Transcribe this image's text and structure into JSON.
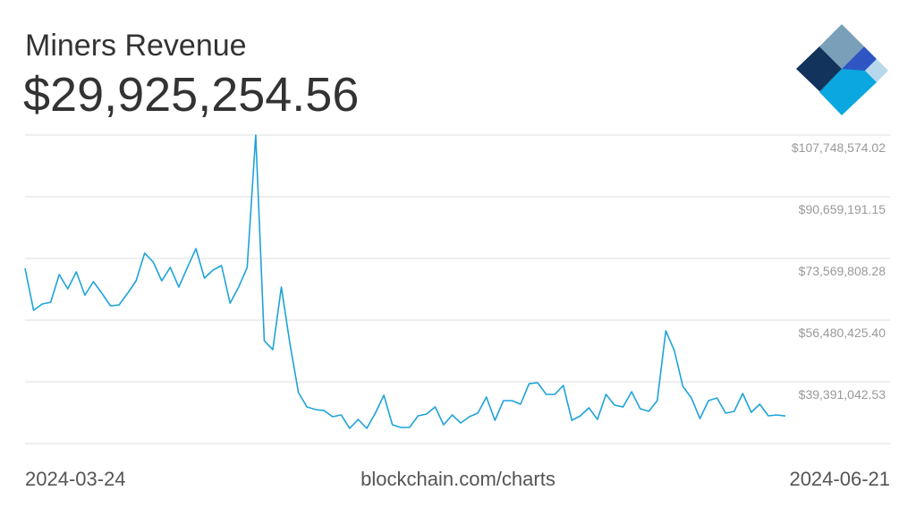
{
  "header": {
    "title": "Miners Revenue",
    "value": "$29,925,254.56"
  },
  "footer": {
    "source": "blockchain.com/charts"
  },
  "chart_data": {
    "type": "line",
    "color": "#1fa3d9",
    "grid": true,
    "categories": [
      "2024-03-24",
      null,
      null,
      null,
      null,
      null,
      null,
      null,
      null,
      null,
      null,
      null,
      null,
      null,
      null,
      null,
      null,
      null,
      null,
      null,
      null,
      null,
      null,
      null,
      null,
      null,
      null,
      null,
      null,
      null,
      null,
      null,
      null,
      null,
      null,
      null,
      null,
      null,
      null,
      null,
      null,
      null,
      null,
      null,
      null,
      null,
      null,
      null,
      null,
      null,
      null,
      null,
      null,
      null,
      null,
      null,
      null,
      null,
      null,
      null,
      null,
      null,
      null,
      null,
      null,
      null,
      null,
      null,
      null,
      null,
      null,
      null,
      null,
      null,
      null,
      null,
      null,
      null,
      null,
      null,
      null,
      null,
      null,
      null,
      null,
      null,
      null,
      null,
      null,
      "2024-06-21"
    ],
    "values": [
      70840000,
      59200000,
      60940000,
      61430000,
      69110000,
      65150000,
      69850000,
      63410000,
      67130000,
      63910000,
      60440000,
      60690000,
      63910000,
      67380000,
      75050000,
      72580000,
      67380000,
      71090000,
      65640000,
      71090000,
      76290000,
      68120000,
      70350000,
      71590000,
      61180000,
      65640000,
      71090000,
      107750000,
      50780000,
      48310000,
      65640000,
      50040000,
      36420000,
      32450000,
      31710000,
      31460000,
      29730000,
      30230000,
      26510000,
      28990000,
      26510000,
      30720000,
      35670000,
      27500000,
      26760000,
      26760000,
      29980000,
      30470000,
      32450000,
      27500000,
      30230000,
      28000000,
      29730000,
      30720000,
      35180000,
      28740000,
      34190000,
      34190000,
      33200000,
      38890000,
      39140000,
      35920000,
      35920000,
      38400000,
      28740000,
      29980000,
      32210000,
      28990000,
      35920000,
      32950000,
      32450000,
      36660000,
      31960000,
      31220000,
      34190000,
      53510000,
      48060000,
      38150000,
      34930000,
      29230000,
      34190000,
      34930000,
      30720000,
      31220000,
      36170000,
      30970000,
      33200000,
      29980000,
      30230000,
      29930000
    ],
    "ylim": [
      22301659.66,
      107748574.02
    ],
    "yticks": [
      {
        "value": 39391042.53,
        "label": "$39,391,042.53"
      },
      {
        "value": 56480425.4,
        "label": "$56,480,425.40"
      },
      {
        "value": 73569808.28,
        "label": "$73,569,808.28"
      },
      {
        "value": 90659191.15,
        "label": "$90,659,191.15"
      },
      {
        "value": 107748574.02,
        "label": "$107,748,574.02"
      }
    ]
  }
}
